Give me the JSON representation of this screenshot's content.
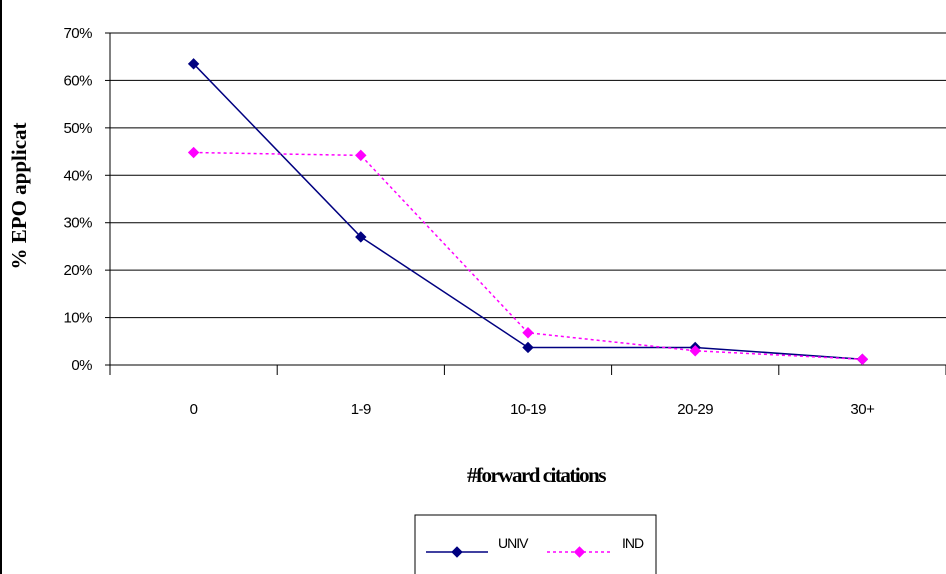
{
  "chart_data": {
    "type": "line",
    "categories": [
      "0",
      "1-9",
      "10-19",
      "20-29",
      "30+"
    ],
    "series": [
      {
        "name": "UNIV",
        "values": [
          63.5,
          27.0,
          3.7,
          3.7,
          1.2
        ],
        "color": "#000080",
        "style": "solid",
        "marker": "diamond"
      },
      {
        "name": "IND",
        "values": [
          44.8,
          44.2,
          6.8,
          3.0,
          1.2
        ],
        "color": "#ff00ff",
        "style": "dotted",
        "marker": "diamond"
      }
    ],
    "ylim": [
      0,
      70
    ],
    "yticks": [
      "0%",
      "10%",
      "20%",
      "30%",
      "40%",
      "50%",
      "60%",
      "70%"
    ],
    "xlabel": "#forward citations",
    "ylabel": "% EPO applicat",
    "grid": true,
    "legend": "bottom-center"
  }
}
